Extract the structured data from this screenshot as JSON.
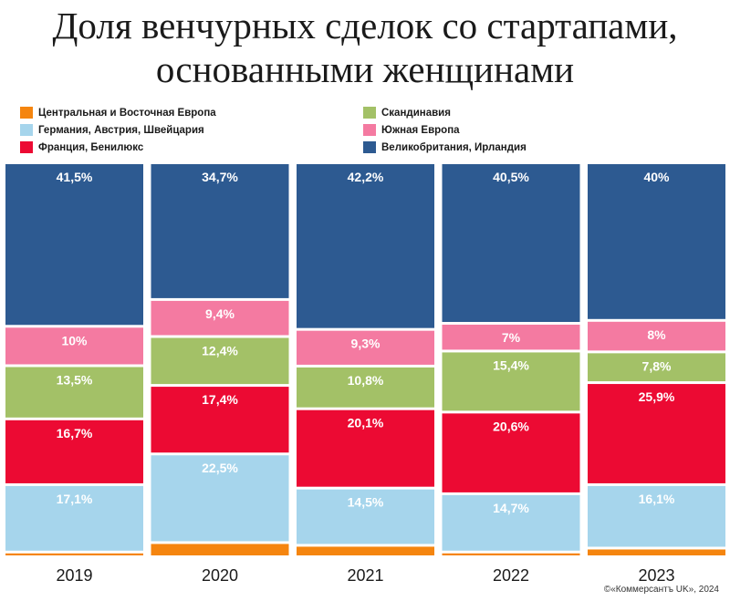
{
  "title_lines": [
    "Доля венчурных сделок со стартапами,",
    "основанными женщинами"
  ],
  "credit": "©«Коммерсантъ UK», 2024",
  "chart_data": {
    "type": "bar",
    "stacked": true,
    "percent_stacked": true,
    "categories": [
      "2019",
      "2020",
      "2021",
      "2022",
      "2023"
    ],
    "legend_placement": "top",
    "series": [
      {
        "name": "Центральная и Восточная Европа",
        "color": "#f5850f",
        "values": [
          1.2,
          3.6,
          2.9,
          1.2,
          2.2
        ],
        "labels": [
          null,
          null,
          null,
          null,
          null
        ]
      },
      {
        "name": "Германия, Австрия, Швейцария",
        "color": "#a6d5ec",
        "values": [
          17.1,
          22.5,
          14.5,
          14.7,
          16.1
        ],
        "labels": [
          "17,1%",
          "22,5%",
          "14,5%",
          "14,7%",
          "16,1%"
        ]
      },
      {
        "name": "Франция, Бенилюкс",
        "color": "#ec0a33",
        "values": [
          16.7,
          17.4,
          20.1,
          20.6,
          25.9
        ],
        "labels": [
          "16,7%",
          "17,4%",
          "20,1%",
          "20,6%",
          "25,9%"
        ]
      },
      {
        "name": "Скандинавия",
        "color": "#a3c167",
        "values": [
          13.5,
          12.4,
          10.8,
          15.4,
          7.8
        ],
        "labels": [
          "13,5%",
          "12,4%",
          "10,8%",
          "15,4%",
          "7,8%"
        ]
      },
      {
        "name": "Южная Европа",
        "color": "#f47aa1",
        "values": [
          10,
          9.4,
          9.3,
          7,
          8
        ],
        "labels": [
          "10%",
          "9,4%",
          "9,3%",
          "7%",
          "8%"
        ]
      },
      {
        "name": "Великобритания, Ирландия",
        "color": "#2d5a91",
        "values": [
          41.5,
          34.7,
          42.2,
          40.5,
          40
        ],
        "labels": [
          "41,5%",
          "34,7%",
          "42,2%",
          "40,5%",
          "40%"
        ]
      }
    ],
    "legend_order": [
      0,
      3,
      1,
      4,
      2,
      5
    ]
  }
}
